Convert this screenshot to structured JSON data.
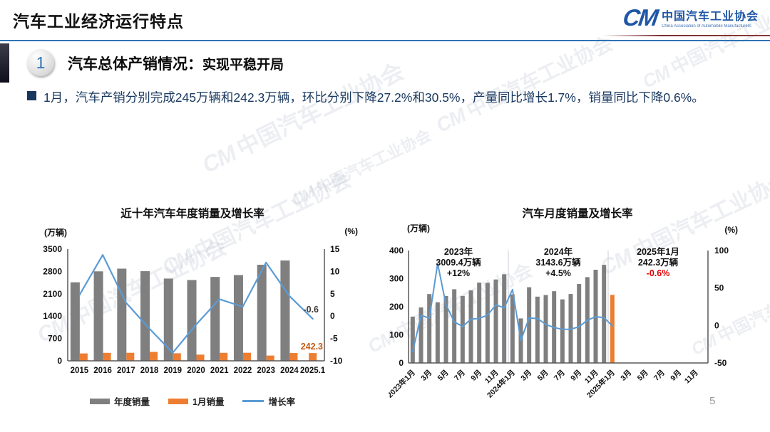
{
  "header": {
    "title": "汽车工业经济运行特点",
    "logo": {
      "monogram": "CM",
      "org_cn": "中国汽车工业协会",
      "org_en": "China Association of Automobile Manufacturers"
    }
  },
  "section": {
    "badge": "1",
    "title": "汽车总体产销情况：",
    "subtitle": "实现平稳开局"
  },
  "bullet": {
    "text": "1月，汽车产销分别完成245万辆和242.3万辆，环比分别下降27.2%和30.5%，产量同比增长1.7%，销量同比下降0.6%。"
  },
  "watermark": {
    "text": "中国汽车工业协会",
    "monogram": "CM"
  },
  "page": {
    "number": "5"
  },
  "colors": {
    "accent_blue": "#2E74B5",
    "navy_text": "#17375E",
    "bar_gray": "#7F7F7F",
    "bar_orange": "#ED7D31",
    "line_blue": "#5B9BD5",
    "negative_red": "#E00000",
    "annotation_orange": "#C55A11",
    "logo_blue": "#1F57A6"
  },
  "chart_data": [
    {
      "type": "bar",
      "title": "近十年汽车年度销量及增长率",
      "left_axis": {
        "unit": "(万辆)",
        "min": 0,
        "max": 3500,
        "ticks": [
          0,
          700,
          1400,
          2100,
          2800,
          3500
        ]
      },
      "right_axis": {
        "unit": "(%)",
        "min": -10,
        "max": 15,
        "ticks": [
          -10,
          -5,
          0,
          5,
          10,
          15
        ]
      },
      "categories": [
        "2015",
        "2016",
        "2017",
        "2018",
        "2019",
        "2020",
        "2021",
        "2022",
        "2023",
        "2024",
        "2025.1"
      ],
      "series": [
        {
          "name": "年度销量",
          "type": "bar",
          "axis": "left",
          "color": "#7F7F7F",
          "values": [
            2459.8,
            2802.8,
            2887.9,
            2808.1,
            2576.9,
            2531.1,
            2627.5,
            2686.4,
            3009.4,
            3143.6,
            null
          ]
        },
        {
          "name": "1月销量",
          "type": "bar",
          "axis": "left",
          "color": "#ED7D31",
          "values": [
            231.9,
            250.1,
            252.0,
            280.9,
            236.7,
            194.1,
            250.3,
            253.1,
            164.9,
            243.9,
            242.3
          ]
        },
        {
          "name": "增长率",
          "type": "line",
          "axis": "right",
          "color": "#5B9BD5",
          "values": [
            4.7,
            13.7,
            3.0,
            -2.8,
            -8.2,
            -1.9,
            3.8,
            2.1,
            12.0,
            4.5,
            -0.6
          ]
        }
      ],
      "point_labels": [
        {
          "text": "-0.6",
          "color": "#3a3a3a"
        },
        {
          "text": "242.3",
          "color": "#C55A11"
        }
      ],
      "legend_position": "bottom",
      "grid": false
    },
    {
      "type": "bar",
      "title": "汽车月度销量及增长率",
      "left_axis": {
        "unit": "(万辆)",
        "min": 0,
        "max": 400,
        "ticks": [
          0,
          100,
          200,
          300,
          400
        ]
      },
      "right_axis": {
        "unit": "(%)",
        "min": -50,
        "max": 100,
        "ticks": [
          -50,
          0,
          50,
          100
        ]
      },
      "x_tick_labels": [
        "2023年1月",
        "3月",
        "5月",
        "7月",
        "9月",
        "11月",
        "2024年1月",
        "3月",
        "5月",
        "7月",
        "9月",
        "11月",
        "2025年1月",
        "3月",
        "5月",
        "7月",
        "9月",
        "11月"
      ],
      "total_slots": 36,
      "bars": {
        "name": "月度销量",
        "default_color": "#7F7F7F",
        "last_color": "#ED7D31",
        "values": [
          164.9,
          197.6,
          245.1,
          215.9,
          238.2,
          262.2,
          238.7,
          258.2,
          285.8,
          285.3,
          297.0,
          315.6,
          243.9,
          158.4,
          269.4,
          235.9,
          241.7,
          255.2,
          226.2,
          245.3,
          280.9,
          305.3,
          331.6,
          348.9,
          242.3
        ]
      },
      "line": {
        "name": "增长率",
        "color": "#5B9BD5",
        "values": [
          -35.0,
          13.5,
          9.7,
          82.7,
          27.9,
          4.8,
          -1.4,
          8.4,
          9.5,
          13.8,
          27.4,
          23.5,
          47.9,
          -19.9,
          9.9,
          9.3,
          1.5,
          -2.7,
          -5.2,
          -5.0,
          -1.7,
          7.0,
          11.7,
          10.5,
          -0.6
        ]
      },
      "year_separators_at_slot": [
        12,
        24
      ],
      "annotations": [
        {
          "slot_center": 6,
          "lines": [
            {
              "text": "2023年"
            },
            {
              "text": "3009.4万辆"
            },
            {
              "text": "+12%"
            }
          ]
        },
        {
          "slot_center": 18,
          "lines": [
            {
              "text": "2024年"
            },
            {
              "text": "3143.6万辆"
            },
            {
              "text": "+4.5%"
            }
          ]
        },
        {
          "slot_center": 30,
          "lines": [
            {
              "text": "2025年1月"
            },
            {
              "text": "242.3万辆"
            },
            {
              "text": "-0.6%",
              "color": "#E00000"
            }
          ]
        }
      ],
      "grid": false
    }
  ]
}
